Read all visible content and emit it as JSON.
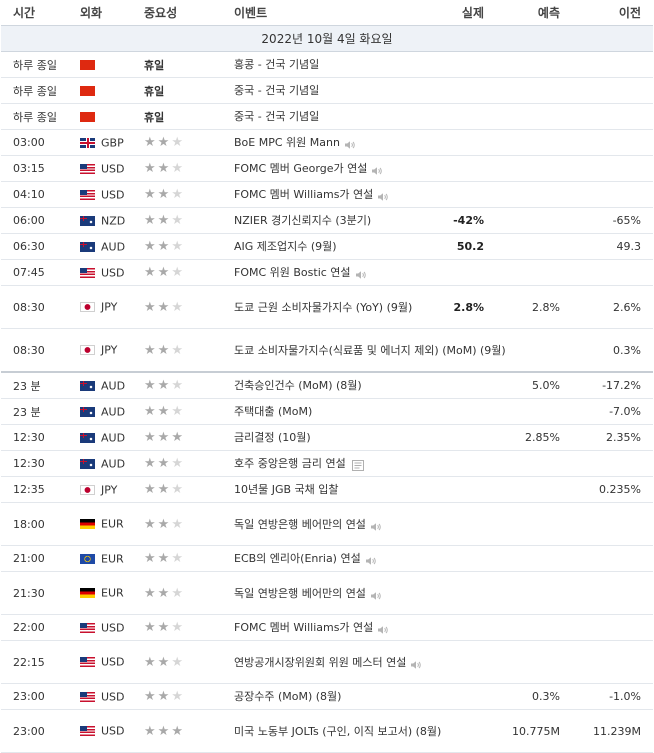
{
  "header": {
    "time": "시간",
    "currency": "외화",
    "importance": "중요성",
    "event": "이벤트",
    "actual": "실제",
    "forecast": "예측",
    "previous": "이전"
  },
  "date_label": "2022년 10월 4일 화요일",
  "colors": {
    "header_border": "#cfd6de",
    "date_bg": "#eef2f7",
    "star_on": "#a9a9a9",
    "star_off": "#d6d6d6"
  },
  "rows": [
    {
      "time": "하루 종일",
      "flag": "hk",
      "currency": "",
      "stars": 0,
      "holiday": "휴일",
      "event": "홍콩 - 건국 기념일",
      "actual": "",
      "forecast": "",
      "previous": "",
      "tall": false
    },
    {
      "time": "하루 종일",
      "flag": "cn",
      "currency": "",
      "stars": 0,
      "holiday": "휴일",
      "event": "중국 - 건국 기념일",
      "actual": "",
      "forecast": "",
      "previous": "",
      "tall": false
    },
    {
      "time": "하루 종일",
      "flag": "cn",
      "currency": "",
      "stars": 0,
      "holiday": "휴일",
      "event": "중국 - 건국 기념일",
      "actual": "",
      "forecast": "",
      "previous": "",
      "tall": false
    },
    {
      "time": "03:00",
      "flag": "gb",
      "currency": "GBP",
      "stars": 2,
      "event": "BoE MPC 위원 Mann",
      "icon": "sound",
      "actual": "",
      "forecast": "",
      "previous": "",
      "tall": false
    },
    {
      "time": "03:15",
      "flag": "us",
      "currency": "USD",
      "stars": 2,
      "event": "FOMC 멤버 George가 연설",
      "icon": "sound",
      "actual": "",
      "forecast": "",
      "previous": "",
      "tall": false
    },
    {
      "time": "04:10",
      "flag": "us",
      "currency": "USD",
      "stars": 2,
      "event": "FOMC 멤버 Williams가 연설",
      "icon": "sound",
      "actual": "",
      "forecast": "",
      "previous": "",
      "tall": false
    },
    {
      "time": "06:00",
      "flag": "nz",
      "currency": "NZD",
      "stars": 2,
      "event": "NZIER 경기신뢰지수 (3분기)",
      "actual": "-42%",
      "forecast": "",
      "previous": "-65%",
      "tall": false
    },
    {
      "time": "06:30",
      "flag": "au",
      "currency": "AUD",
      "stars": 2,
      "event": "AIG 제조업지수 (9월)",
      "actual": "50.2",
      "forecast": "",
      "previous": "49.3",
      "tall": false
    },
    {
      "time": "07:45",
      "flag": "us",
      "currency": "USD",
      "stars": 2,
      "event": "FOMC 위원 Bostic 연설",
      "icon": "sound",
      "actual": "",
      "forecast": "",
      "previous": "",
      "tall": false
    },
    {
      "time": "08:30",
      "flag": "jp",
      "currency": "JPY",
      "stars": 2,
      "event": "도쿄 근원 소비자물가지수 (YoY) (9월)",
      "actual": "2.8%",
      "forecast": "2.8%",
      "previous": "2.6%",
      "tall": true
    },
    {
      "time": "08:30",
      "flag": "jp",
      "currency": "JPY",
      "stars": 2,
      "event": "도쿄 소비자물가지수(식료품 및 에너지 제외) (MoM) (9월)",
      "actual": "",
      "forecast": "",
      "previous": "0.3%",
      "tall": true,
      "sep": true
    },
    {
      "time": "23 분",
      "flag": "au",
      "currency": "AUD",
      "stars": 2,
      "event": "건축승인건수 (MoM) (8월)",
      "actual": "",
      "forecast": "5.0%",
      "previous": "-17.2%",
      "tall": false
    },
    {
      "time": "23 분",
      "flag": "au",
      "currency": "AUD",
      "stars": 2,
      "event": "주택대출 (MoM)",
      "actual": "",
      "forecast": "",
      "previous": "-7.0%",
      "tall": false
    },
    {
      "time": "12:30",
      "flag": "au",
      "currency": "AUD",
      "stars": 3,
      "event": "금리결정 (10월)",
      "actual": "",
      "forecast": "2.85%",
      "previous": "2.35%",
      "tall": false
    },
    {
      "time": "12:30",
      "flag": "au",
      "currency": "AUD",
      "stars": 2,
      "event": "호주 중앙은행 금리 연설",
      "icon": "note",
      "actual": "",
      "forecast": "",
      "previous": "",
      "tall": false
    },
    {
      "time": "12:35",
      "flag": "jp",
      "currency": "JPY",
      "stars": 2,
      "event": "10년물 JGB 국채 입찰",
      "actual": "",
      "forecast": "",
      "previous": "0.235%",
      "tall": false
    },
    {
      "time": "18:00",
      "flag": "de",
      "currency": "EUR",
      "stars": 2,
      "event": "독일 연방은행 베어만의 연설",
      "icon": "sound",
      "actual": "",
      "forecast": "",
      "previous": "",
      "tall": true
    },
    {
      "time": "21:00",
      "flag": "eu",
      "currency": "EUR",
      "stars": 2,
      "event": "ECB의 엔리아(Enria) 연설",
      "icon": "sound",
      "actual": "",
      "forecast": "",
      "previous": "",
      "tall": false
    },
    {
      "time": "21:30",
      "flag": "de",
      "currency": "EUR",
      "stars": 2,
      "event": "독일 연방은행 베어만의 연설",
      "icon": "sound",
      "actual": "",
      "forecast": "",
      "previous": "",
      "tall": true
    },
    {
      "time": "22:00",
      "flag": "us",
      "currency": "USD",
      "stars": 2,
      "event": "FOMC 멤버 Williams가 연설",
      "icon": "sound",
      "actual": "",
      "forecast": "",
      "previous": "",
      "tall": false
    },
    {
      "time": "22:15",
      "flag": "us",
      "currency": "USD",
      "stars": 2,
      "event": "연방공개시장위원회 위원 메스터 연설",
      "icon": "sound",
      "actual": "",
      "forecast": "",
      "previous": "",
      "tall": true
    },
    {
      "time": "23:00",
      "flag": "us",
      "currency": "USD",
      "stars": 2,
      "event": "공장수주 (MoM) (8월)",
      "actual": "",
      "forecast": "0.3%",
      "previous": "-1.0%",
      "tall": false
    },
    {
      "time": "23:00",
      "flag": "us",
      "currency": "USD",
      "stars": 3,
      "event": "미국 노동부 JOLTs (구인, 이직 보고서) (8월)",
      "actual": "",
      "forecast": "10.775M",
      "previous": "11.239M",
      "tall": true
    }
  ]
}
